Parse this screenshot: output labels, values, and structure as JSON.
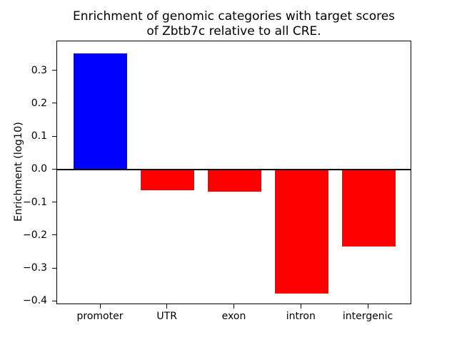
{
  "chart_data": {
    "type": "bar",
    "title": "Enrichment of genomic categories with target scores of Zbtb7c relative to all CRE.",
    "title_lines": [
      "Enrichment of genomic categories with target scores",
      "of Zbtb7c relative to all CRE."
    ],
    "ylabel": "Enrichment (log10)",
    "xlabel": "",
    "categories": [
      "promoter",
      "UTR",
      "exon",
      "intron",
      "intergenic"
    ],
    "values": [
      0.353,
      -0.062,
      -0.066,
      -0.375,
      -0.233
    ],
    "bar_colors": [
      "#0000ff",
      "#ff0000",
      "#ff0000",
      "#ff0000",
      "#ff0000"
    ],
    "positive_color": "#0000ff",
    "negative_color": "#ff0000",
    "bar_width_fraction": 0.8,
    "xlim": [
      -0.65,
      4.65
    ],
    "ylim": [
      -0.41,
      0.39
    ],
    "yticks": [
      {
        "label": "0.3",
        "value": 0.3
      },
      {
        "label": "0.2",
        "value": 0.2
      },
      {
        "label": "0.1",
        "value": 0.1
      },
      {
        "label": "0.0",
        "value": 0.0
      },
      {
        "label": "−0.1",
        "value": -0.1
      },
      {
        "label": "−0.2",
        "value": -0.2
      },
      {
        "label": "−0.3",
        "value": -0.3
      },
      {
        "label": "−0.4",
        "value": -0.4
      }
    ],
    "zero_line": true,
    "grid": false,
    "legend": null,
    "axis_color": "#000000",
    "text_color": "#000000",
    "background_color": "#ffffff"
  }
}
